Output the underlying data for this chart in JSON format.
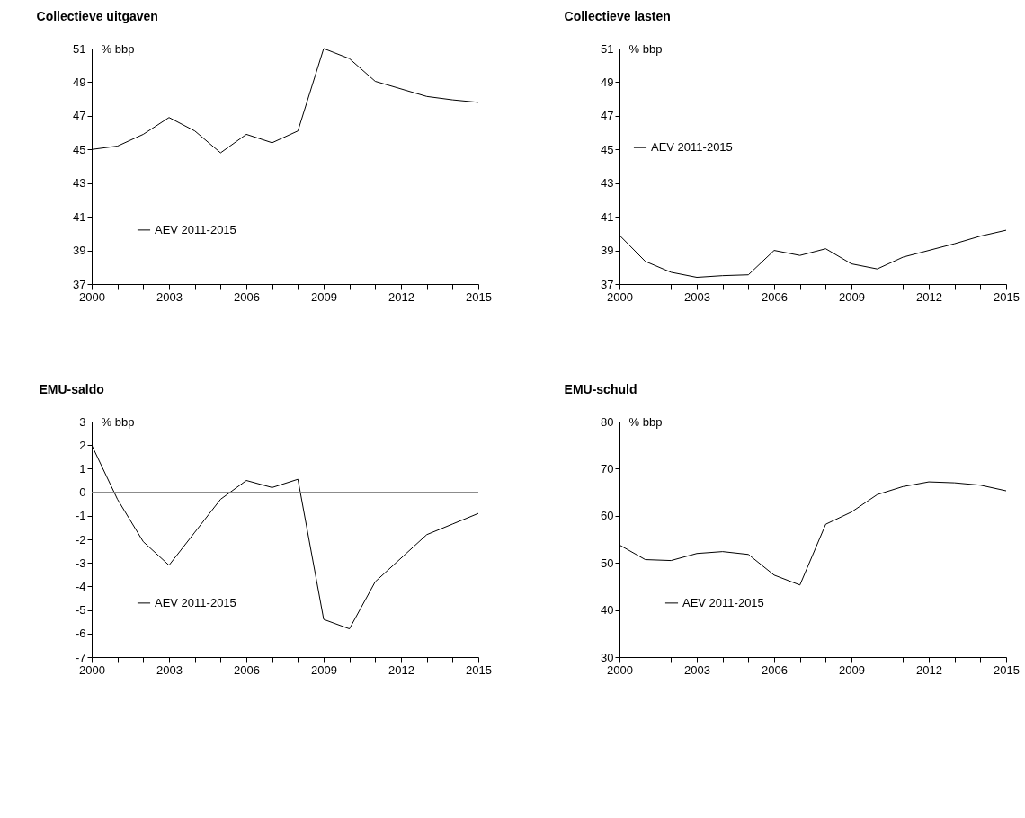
{
  "chart_data": [
    {
      "type": "line",
      "title": "Collectieve uitgaven",
      "ylabel": "% bbp",
      "x": [
        2000,
        2001,
        2002,
        2003,
        2004,
        2005,
        2006,
        2007,
        2008,
        2009,
        2010,
        2011,
        2012,
        2013,
        2014,
        2015
      ],
      "series": [
        {
          "name": "AEV 2011-2015",
          "color": "#000000",
          "values": [
            45.0,
            45.2,
            45.9,
            46.9,
            46.1,
            44.8,
            45.9,
            45.4,
            46.1,
            51.0,
            50.4,
            49.05,
            48.6,
            48.15,
            47.95,
            47.8
          ]
        }
      ],
      "xlim": [
        2000,
        2015
      ],
      "xticks": [
        2000,
        {
          "value": 2001,
          "label": null
        },
        {
          "value": 2002,
          "label": null
        },
        2003,
        {
          "value": 2004,
          "label": null
        },
        {
          "value": 2005,
          "label": null
        },
        2006,
        {
          "value": 2007,
          "label": null
        },
        {
          "value": 2008,
          "label": null
        },
        2009,
        {
          "value": 2010,
          "label": null
        },
        {
          "value": 2011,
          "label": null
        },
        2012,
        {
          "value": 2013,
          "label": null
        },
        {
          "value": 2014,
          "label": null
        },
        2015
      ],
      "ylim": [
        37,
        51
      ],
      "yticks": [
        37,
        39,
        41,
        43,
        45,
        47,
        49,
        51
      ],
      "grid": false,
      "legend": "bottom left",
      "marker": "none",
      "line_style": "solid"
    },
    {
      "type": "line",
      "title": "Collectieve lasten",
      "ylabel": "% bbp",
      "x": [
        2000,
        2001,
        2002,
        2003,
        2004,
        2005,
        2006,
        2007,
        2008,
        2009,
        2010,
        2011,
        2012,
        2013,
        2014,
        2015
      ],
      "series": [
        {
          "name": "AEV 2011-2015",
          "color": "#000000",
          "values": [
            39.9,
            38.35,
            37.7,
            37.4,
            37.5,
            37.55,
            39.0,
            38.7,
            39.1,
            38.2,
            37.9,
            38.6,
            39.0,
            39.4,
            39.85,
            40.2
          ]
        }
      ],
      "xlim": [
        2000,
        2015
      ],
      "xticks": [
        2000,
        {
          "value": 2001,
          "label": null
        },
        {
          "value": 2002,
          "label": null
        },
        2003,
        {
          "value": 2004,
          "label": null
        },
        {
          "value": 2005,
          "label": null
        },
        2006,
        {
          "value": 2007,
          "label": null
        },
        {
          "value": 2008,
          "label": null
        },
        2009,
        {
          "value": 2010,
          "label": null
        },
        {
          "value": 2011,
          "label": null
        },
        2012,
        {
          "value": 2013,
          "label": null
        },
        {
          "value": 2014,
          "label": null
        },
        2015
      ],
      "ylim": [
        37,
        51
      ],
      "yticks": [
        37,
        39,
        41,
        43,
        45,
        47,
        49,
        51
      ],
      "grid": false,
      "legend": "left",
      "marker": "none",
      "line_style": "solid"
    },
    {
      "type": "line",
      "title": "EMU-saldo",
      "ylabel": "% bbp",
      "x": [
        2000,
        2001,
        2002,
        2003,
        2004,
        2005,
        2006,
        2007,
        2008,
        2009,
        2010,
        2011,
        2012,
        2013,
        2014,
        2015
      ],
      "series": [
        {
          "name": "AEV 2011-2015",
          "color": "#000000",
          "values": [
            2.0,
            -0.3,
            -2.1,
            -3.1,
            -1.7,
            -0.3,
            0.5,
            0.2,
            0.55,
            -5.4,
            -5.8,
            -3.8,
            -2.8,
            -1.8,
            -1.35,
            -0.9
          ]
        }
      ],
      "xlim": [
        2000,
        2015
      ],
      "xticks": [
        2000,
        {
          "value": 2001,
          "label": null
        },
        {
          "value": 2002,
          "label": null
        },
        2003,
        {
          "value": 2004,
          "label": null
        },
        {
          "value": 2005,
          "label": null
        },
        2006,
        {
          "value": 2007,
          "label": null
        },
        {
          "value": 2008,
          "label": null
        },
        2009,
        {
          "value": 2010,
          "label": null
        },
        {
          "value": 2011,
          "label": null
        },
        2012,
        {
          "value": 2013,
          "label": null
        },
        {
          "value": 2014,
          "label": null
        },
        2015
      ],
      "ylim": [
        -7,
        3
      ],
      "yticks": [
        -7,
        -6,
        -5,
        -4,
        -3,
        -2,
        -1,
        0,
        1,
        2,
        3
      ],
      "ref_lines": [
        {
          "axis": "y",
          "value": 0,
          "color": "#808080"
        }
      ],
      "grid": false,
      "legend": "bottom left",
      "marker": "none",
      "line_style": "solid"
    },
    {
      "type": "line",
      "title": "EMU-schuld",
      "ylabel": "% bbp",
      "x": [
        2000,
        2001,
        2002,
        2003,
        2004,
        2005,
        2006,
        2007,
        2008,
        2009,
        2010,
        2011,
        2012,
        2013,
        2014,
        2015
      ],
      "series": [
        {
          "name": "AEV 2011-2015",
          "color": "#000000",
          "values": [
            53.8,
            50.7,
            50.5,
            52.0,
            52.4,
            51.8,
            47.4,
            45.3,
            58.2,
            60.8,
            64.5,
            66.2,
            67.2,
            67.0,
            66.5,
            65.3
          ]
        }
      ],
      "xlim": [
        2000,
        2015
      ],
      "xticks": [
        2000,
        {
          "value": 2001,
          "label": null
        },
        {
          "value": 2002,
          "label": null
        },
        2003,
        {
          "value": 2004,
          "label": null
        },
        {
          "value": 2005,
          "label": null
        },
        2006,
        {
          "value": 2007,
          "label": null
        },
        {
          "value": 2008,
          "label": null
        },
        2009,
        {
          "value": 2010,
          "label": null
        },
        {
          "value": 2011,
          "label": null
        },
        2012,
        {
          "value": 2013,
          "label": null
        },
        {
          "value": 2014,
          "label": null
        },
        2015
      ],
      "ylim": [
        30,
        80
      ],
      "yticks": [
        30,
        40,
        50,
        60,
        70,
        80
      ],
      "grid": false,
      "legend": "bottom left",
      "marker": "none",
      "line_style": "solid"
    }
  ]
}
